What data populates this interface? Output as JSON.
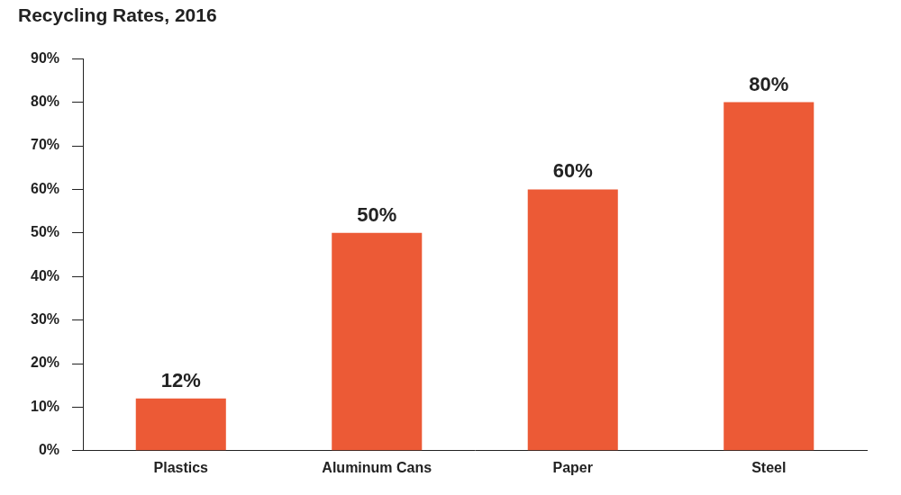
{
  "chart_data": {
    "type": "bar",
    "title": "Recycling Rates, 2016",
    "categories": [
      "Plastics",
      "Aluminum Cans",
      "Paper",
      "Steel"
    ],
    "values": [
      12,
      50,
      60,
      80
    ],
    "value_labels": [
      "12%",
      "50%",
      "60%",
      "80%"
    ],
    "data_labels": true,
    "color": "#ec5a36",
    "ylim": [
      0,
      90
    ],
    "yticks": [
      {
        "value": 0,
        "label": "0%"
      },
      {
        "value": 10,
        "label": "10%"
      },
      {
        "value": 20,
        "label": "20%"
      },
      {
        "value": 30,
        "label": "30%"
      },
      {
        "value": 40,
        "label": "40%"
      },
      {
        "value": 50,
        "label": "50%"
      },
      {
        "value": 60,
        "label": "60%"
      },
      {
        "value": 70,
        "label": "70%"
      },
      {
        "value": 80,
        "label": "80%"
      },
      {
        "value": 90,
        "label": "90%"
      }
    ],
    "grid": false
  }
}
